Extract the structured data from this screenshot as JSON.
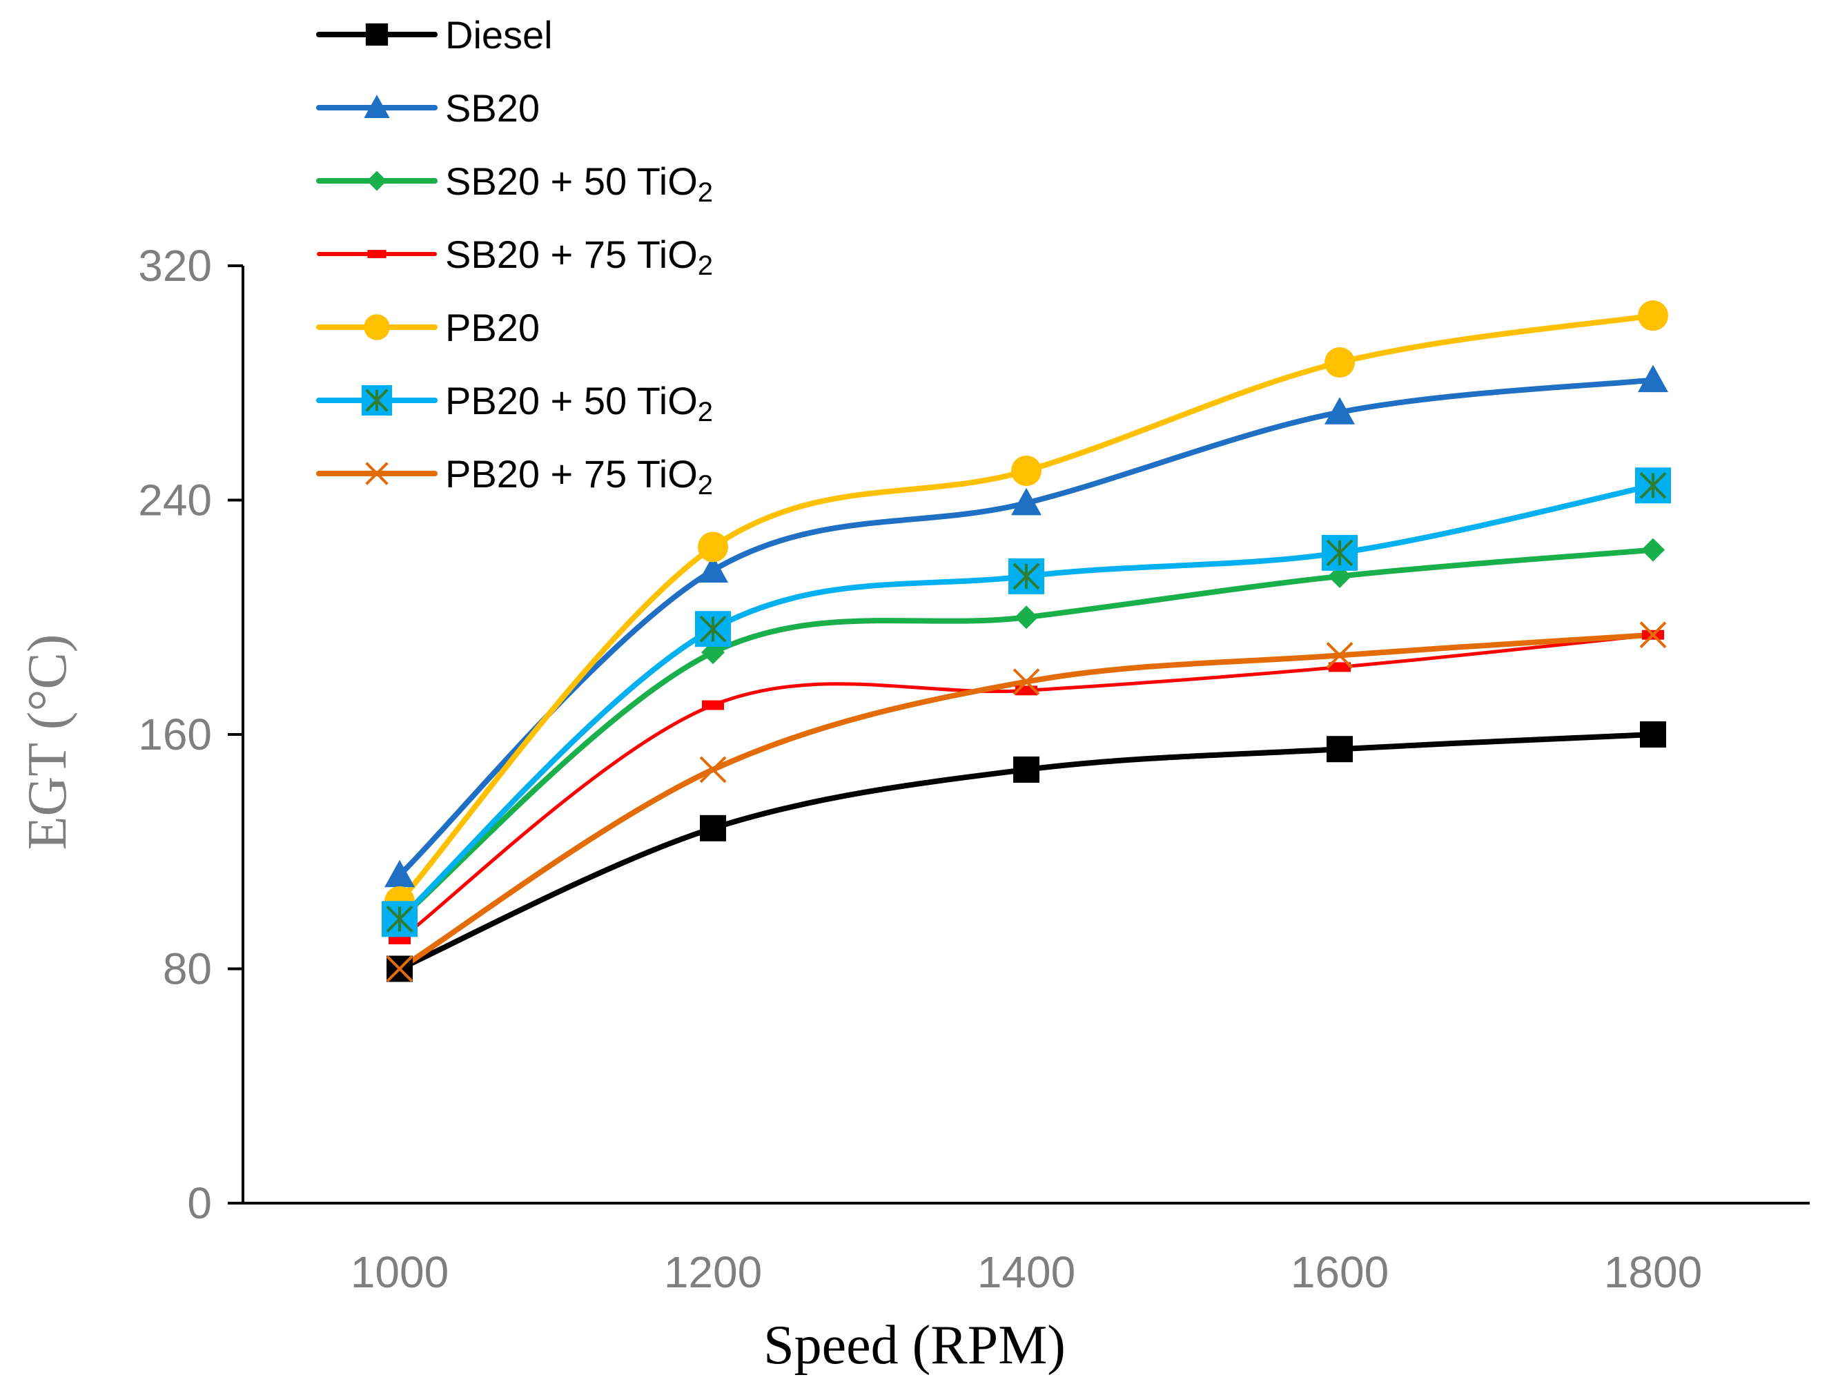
{
  "chart_data": {
    "type": "line",
    "xlabel": "Speed (RPM)",
    "ylabel": "EGT (°C)",
    "x": [
      1000,
      1200,
      1400,
      1600,
      1800
    ],
    "x_tick_labels": [
      "1000",
      "1200",
      "1400",
      "1600",
      "1800"
    ],
    "xlim": [
      900,
      1900
    ],
    "ylim": [
      0,
      320
    ],
    "y_ticks": [
      0,
      80,
      160,
      240,
      320
    ],
    "y_tick_labels": [
      "0",
      "80",
      "160",
      "240",
      "320"
    ],
    "grid": false,
    "legend_position": "top-left",
    "series": [
      {
        "name": "Diesel",
        "label_base": "Diesel",
        "label_sub": "",
        "color": "#000000",
        "marker": "square",
        "values": [
          80,
          128,
          148,
          155,
          160
        ]
      },
      {
        "name": "SB20",
        "label_base": "SB20",
        "label_sub": "",
        "color": "#1f6fc5",
        "marker": "triangle",
        "values": [
          112,
          216,
          239,
          270,
          281
        ]
      },
      {
        "name": "SB20 + 50 TiO₂",
        "label_base": "SB20 + 50 TiO",
        "label_sub": "2",
        "color": "#19b04b",
        "marker": "diamond",
        "values": [
          97,
          188,
          200,
          214,
          223
        ]
      },
      {
        "name": "SB20 + 75 TiO₂",
        "label_base": "SB20 + 75 TiO",
        "label_sub": "2",
        "color": "#ff0000",
        "marker": "dash",
        "values": [
          90,
          170,
          175,
          183,
          194
        ]
      },
      {
        "name": "PB20",
        "label_base": "PB20",
        "label_sub": "",
        "color": "#ffc000",
        "marker": "circle",
        "values": [
          103,
          224,
          250,
          287,
          303
        ]
      },
      {
        "name": "PB20 + 50 TiO₂",
        "label_base": "PB20 + 50 TiO",
        "label_sub": "2",
        "color": "#00b0f0",
        "marker": "square-star",
        "values": [
          97,
          196,
          214,
          222,
          245
        ]
      },
      {
        "name": "PB20 + 75 TiO₂",
        "label_base": "PB20 + 75 TiO",
        "label_sub": "2",
        "color": "#e36c09",
        "marker": "x",
        "values": [
          80,
          148,
          178,
          187,
          194
        ]
      }
    ]
  }
}
